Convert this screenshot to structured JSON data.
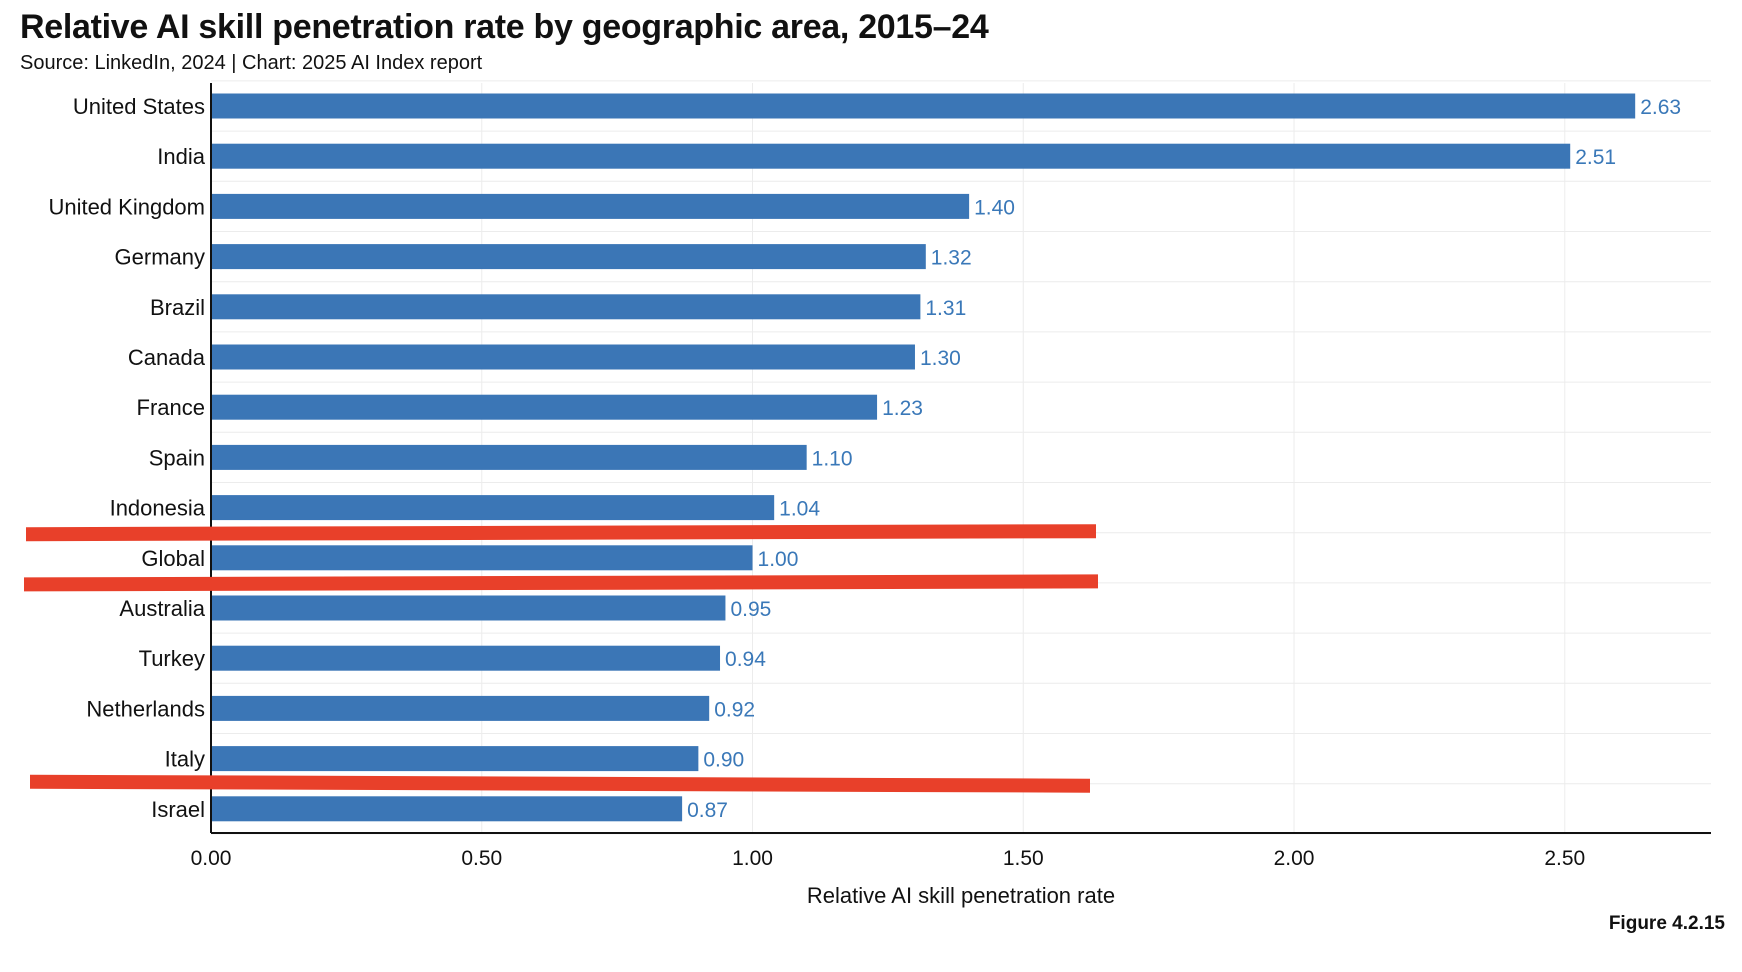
{
  "title": "Relative AI skill penetration rate by geographic area, 2015–24",
  "subtitle": "Source: LinkedIn, 2024 | Chart: 2025 AI Index report",
  "figure_label": "Figure 4.2.15",
  "colors": {
    "bar": "#3b76b6",
    "value_label": "#3a78b8",
    "highlight_line": "#e8402a",
    "grid": "#ececec",
    "axis": "#111111"
  },
  "chart_data": {
    "type": "bar",
    "orientation": "horizontal",
    "title": "Relative AI skill penetration rate by geographic area, 2015–24",
    "xlabel": "Relative AI skill penetration rate",
    "ylabel": "",
    "categories": [
      "United States",
      "India",
      "United Kingdom",
      "Germany",
      "Brazil",
      "Canada",
      "France",
      "Spain",
      "Indonesia",
      "Global",
      "Australia",
      "Turkey",
      "Netherlands",
      "Italy",
      "Israel"
    ],
    "values": [
      2.63,
      2.51,
      1.4,
      1.32,
      1.31,
      1.3,
      1.23,
      1.1,
      1.04,
      1.0,
      0.95,
      0.94,
      0.92,
      0.9,
      0.87
    ],
    "value_labels": [
      "2.63",
      "2.51",
      "1.40",
      "1.32",
      "1.31",
      "1.30",
      "1.23",
      "1.10",
      "1.04",
      "1.00",
      "0.95",
      "0.94",
      "0.92",
      "0.90",
      "0.87"
    ],
    "xlim": [
      0,
      2.77
    ],
    "xticks": [
      0,
      0.5,
      1.0,
      1.5,
      2.0,
      2.5
    ],
    "xtick_labels": [
      "0.00",
      "0.50",
      "1.00",
      "1.50",
      "2.00",
      "2.50"
    ],
    "grid": true,
    "annotations": {
      "highlight_lines_between": [
        [
          "Indonesia",
          "Global"
        ],
        [
          "Global",
          "Australia"
        ],
        [
          "Italy",
          "Israel"
        ]
      ]
    }
  }
}
